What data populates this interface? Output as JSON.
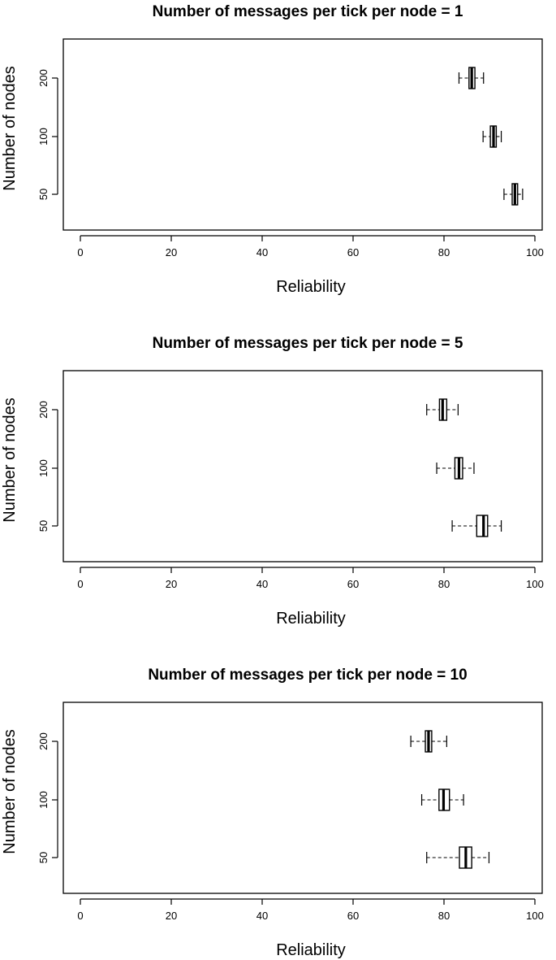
{
  "chart_data": [
    {
      "type": "boxplot",
      "orientation": "horizontal",
      "title": "Number of messages per tick per node = 1",
      "xlabel": "Reliability",
      "ylabel": "Number of nodes",
      "xlim": [
        0,
        100
      ],
      "xticks": [
        "0",
        "20",
        "40",
        "60",
        "80",
        "100"
      ],
      "categories": [
        "50",
        "100",
        "200"
      ],
      "boxes": [
        {
          "category": "50",
          "whisker_low": 93.2,
          "q1": 95.0,
          "median": 95.6,
          "q3": 96.2,
          "whisker_high": 97.3
        },
        {
          "category": "100",
          "whisker_low": 88.6,
          "q1": 90.2,
          "median": 90.9,
          "q3": 91.5,
          "whisker_high": 92.6
        },
        {
          "category": "200",
          "whisker_low": 83.3,
          "q1": 85.5,
          "median": 86.1,
          "q3": 86.8,
          "whisker_high": 88.7
        }
      ]
    },
    {
      "type": "boxplot",
      "orientation": "horizontal",
      "title": "Number of messages per tick per node = 5",
      "xlabel": "Reliability",
      "ylabel": "Number of nodes",
      "xlim": [
        0,
        100
      ],
      "xticks": [
        "0",
        "20",
        "40",
        "60",
        "80",
        "100"
      ],
      "categories": [
        "50",
        "100",
        "200"
      ],
      "boxes": [
        {
          "category": "50",
          "whisker_low": 81.8,
          "q1": 87.2,
          "median": 88.7,
          "q3": 89.6,
          "whisker_high": 92.6
        },
        {
          "category": "100",
          "whisker_low": 78.4,
          "q1": 82.4,
          "median": 83.3,
          "q3": 84.1,
          "whisker_high": 86.6
        },
        {
          "category": "200",
          "whisker_low": 76.2,
          "q1": 79.0,
          "median": 79.7,
          "q3": 80.6,
          "whisker_high": 83.1
        }
      ]
    },
    {
      "type": "boxplot",
      "orientation": "horizontal",
      "title": "Number of messages per tick per node = 10",
      "xlabel": "Reliability",
      "ylabel": "Number of nodes",
      "xlim": [
        0,
        100
      ],
      "xticks": [
        "0",
        "20",
        "40",
        "60",
        "80",
        "100"
      ],
      "categories": [
        "50",
        "100",
        "200"
      ],
      "boxes": [
        {
          "category": "50",
          "whisker_low": 76.2,
          "q1": 83.4,
          "median": 84.8,
          "q3": 86.1,
          "whisker_high": 89.9
        },
        {
          "category": "100",
          "whisker_low": 75.1,
          "q1": 78.9,
          "median": 79.9,
          "q3": 81.2,
          "whisker_high": 84.3
        },
        {
          "category": "200",
          "whisker_low": 72.7,
          "q1": 75.9,
          "median": 76.6,
          "q3": 77.3,
          "whisker_high": 80.6
        }
      ]
    }
  ]
}
